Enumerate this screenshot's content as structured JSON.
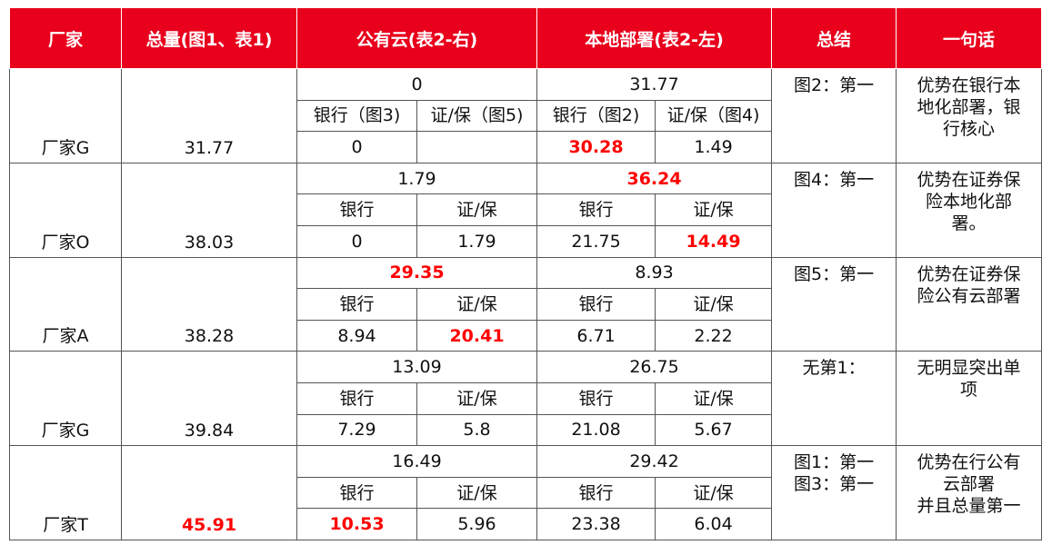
{
  "header": [
    "厂家",
    "总量(图1、表1)",
    "公有云(表2-右)",
    "本地部署(表2-左)",
    "总结",
    "一句话"
  ],
  "highlight_color": "#ff0000",
  "rows": [
    {
      "vendor": "厂家G",
      "total": {
        "text": "31.77"
      },
      "cloud_total": {
        "text": "0"
      },
      "local_total": {
        "text": "31.77"
      },
      "labels": [
        "银行（图3)",
        "证/保（图5)",
        "银行（图2)",
        "证/保（图4)"
      ],
      "values": [
        {
          "text": "0"
        },
        null,
        {
          "text": "30.28",
          "highlight": true
        },
        {
          "text": "1.49"
        }
      ],
      "summary": [
        "图2：第一"
      ],
      "sentence": [
        "优势在银行本地化部署，银行核心"
      ]
    },
    {
      "vendor": "厂家O",
      "total": {
        "text": "38.03"
      },
      "cloud_total": {
        "text": "1.79"
      },
      "local_total": {
        "text": "36.24",
        "highlight": true
      },
      "labels": [
        "银行",
        "证/保",
        "银行",
        "证/保"
      ],
      "values": [
        {
          "text": "0"
        },
        {
          "text": "1.79"
        },
        {
          "text": "21.75"
        },
        {
          "text": "14.49",
          "highlight": true
        }
      ],
      "summary": [
        "图4：第一"
      ],
      "sentence": [
        "优势在证券保险本地化部署。"
      ]
    },
    {
      "vendor": "厂家A",
      "total": {
        "text": "38.28"
      },
      "cloud_total": {
        "text": "29.35",
        "highlight": true
      },
      "local_total": {
        "text": "8.93"
      },
      "labels": [
        "银行",
        "证/保",
        "银行",
        "证/保"
      ],
      "values": [
        {
          "text": "8.94"
        },
        {
          "text": "20.41",
          "highlight": true
        },
        {
          "text": "6.71"
        },
        {
          "text": "2.22"
        }
      ],
      "summary": [
        "图5：第一"
      ],
      "sentence": [
        "优势在证券保险公有云部署"
      ]
    },
    {
      "vendor": "厂家G",
      "total": {
        "text": "39.84"
      },
      "cloud_total": {
        "text": "13.09"
      },
      "local_total": {
        "text": "26.75"
      },
      "labels": [
        "银行",
        "证/保",
        "银行",
        "证/保"
      ],
      "values": [
        {
          "text": "7.29"
        },
        {
          "text": "5.8"
        },
        {
          "text": "21.08"
        },
        {
          "text": "5.67"
        }
      ],
      "summary": [
        "无第1："
      ],
      "sentence": [
        "无明显突出单项"
      ]
    },
    {
      "vendor": "厂家T",
      "total": {
        "text": "45.91",
        "highlight": true
      },
      "cloud_total": {
        "text": "16.49"
      },
      "local_total": {
        "text": "29.42"
      },
      "labels": [
        "银行",
        "证/保",
        "银行",
        "证/保"
      ],
      "values": [
        {
          "text": "10.53",
          "highlight": true
        },
        {
          "text": "5.96"
        },
        {
          "text": "23.38"
        },
        {
          "text": "6.04"
        }
      ],
      "summary": [
        "图1：第一",
        "图3：第一"
      ],
      "sentence": [
        "优势在行公有云部署",
        "并且总量第一"
      ]
    }
  ]
}
